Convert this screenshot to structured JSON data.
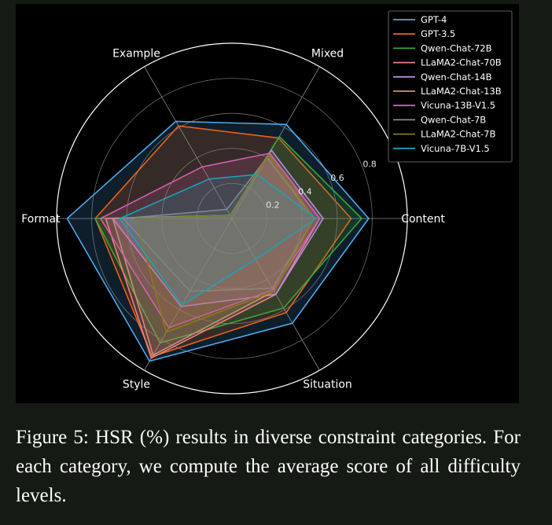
{
  "chart_data": {
    "type": "radar",
    "categories": [
      "Content",
      "Situation",
      "Style",
      "Format",
      "Example",
      "Mixed"
    ],
    "rlim": [
      0,
      1.0
    ],
    "rticks": [
      0.2,
      0.4,
      0.6,
      0.8
    ],
    "rtick_labels": [
      "0.2",
      "0.4",
      "0.6",
      "0.8"
    ],
    "grid": true,
    "legend_position": "top-right",
    "series": [
      {
        "name": "GPT-4",
        "color": "#4fa8e8",
        "values": [
          0.78,
          0.69,
          0.94,
          0.94,
          0.64,
          0.62
        ]
      },
      {
        "name": "GPT-3.5",
        "color": "#e8621c",
        "values": [
          0.68,
          0.62,
          0.91,
          0.78,
          0.61,
          0.53
        ]
      },
      {
        "name": "Qwen-Chat-72B",
        "color": "#3aa63a",
        "values": [
          0.74,
          0.59,
          0.82,
          0.78,
          0.02,
          0.54
        ]
      },
      {
        "name": "LLaMA2-Chat-70B",
        "color": "#f08080",
        "values": [
          0.5,
          0.5,
          0.92,
          0.72,
          0.02,
          0.43
        ]
      },
      {
        "name": "Qwen-Chat-14B",
        "color": "#b58be0",
        "values": [
          0.52,
          0.5,
          0.58,
          0.68,
          0.02,
          0.45
        ]
      },
      {
        "name": "LLaMA2-Chat-13B",
        "color": "#c4967a",
        "values": [
          0.47,
          0.48,
          0.9,
          0.68,
          0.02,
          0.42
        ]
      },
      {
        "name": "Vicuna-13B-V1.5",
        "color": "#d45fae",
        "values": [
          0.5,
          0.47,
          0.72,
          0.75,
          0.34,
          0.43
        ]
      },
      {
        "name": "Qwen-Chat-7B",
        "color": "#8a8a8a",
        "values": [
          0.47,
          0.46,
          0.48,
          0.62,
          0.06,
          0.4
        ]
      },
      {
        "name": "LLaMA2-Chat-7B",
        "color": "#8a7a16",
        "values": [
          0.47,
          0.48,
          0.75,
          0.55,
          0.02,
          0.42
        ]
      },
      {
        "name": "Vicuna-7B-V1.5",
        "color": "#1aa3b8",
        "values": [
          0.48,
          0.27,
          0.57,
          0.64,
          0.26,
          0.29
        ]
      }
    ]
  },
  "caption": "Figure 5: HSR (%) results in diverse constraint categories. For each category, we compute the average score of all difficulty levels."
}
